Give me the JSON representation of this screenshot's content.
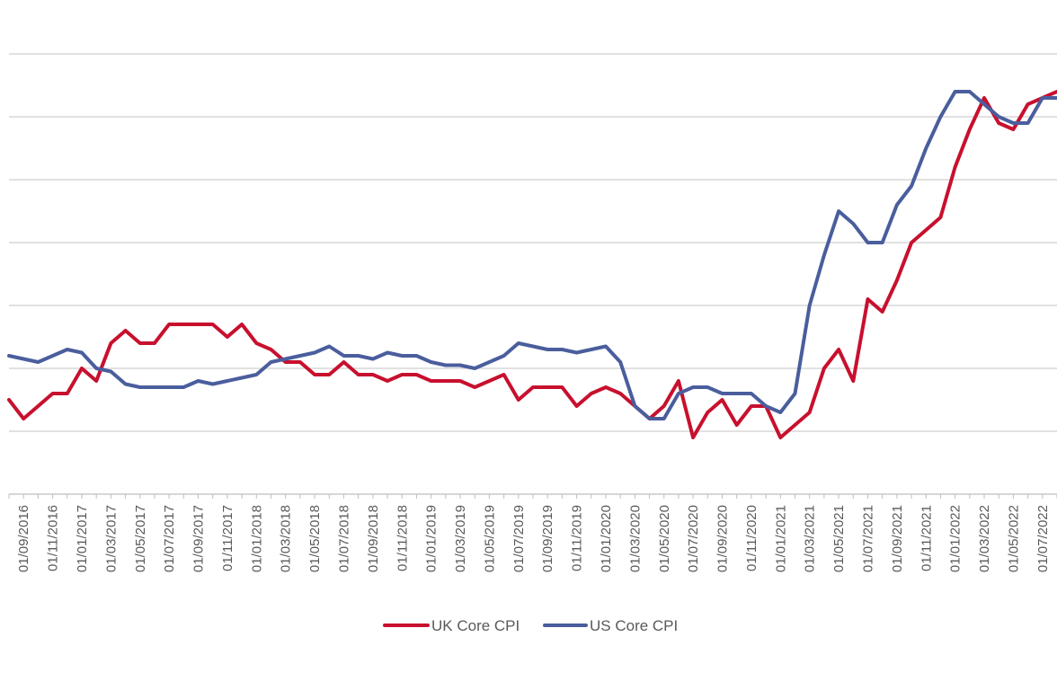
{
  "chart_data": {
    "type": "line",
    "title": "",
    "xlabel": "",
    "ylabel": "",
    "x_tick_labels": [
      "01/09/2016",
      "01/11/2016",
      "01/01/2017",
      "01/03/2017",
      "01/05/2017",
      "01/07/2017",
      "01/09/2017",
      "01/11/2017",
      "01/01/2018",
      "01/03/2018",
      "01/05/2018",
      "01/07/2018",
      "01/09/2018",
      "01/11/2018",
      "01/01/2019",
      "01/03/2019",
      "01/05/2019",
      "01/07/2019",
      "01/09/2019",
      "01/11/2019",
      "01/01/2020",
      "01/03/2020",
      "01/05/2020",
      "01/07/2020",
      "01/09/2020",
      "01/11/2020",
      "01/01/2021",
      "01/03/2021",
      "01/05/2021",
      "01/07/2021",
      "01/09/2021",
      "01/11/2021",
      "01/01/2022",
      "01/03/2022",
      "01/05/2022",
      "01/07/2022"
    ],
    "x": [
      "2016-08",
      "2016-09",
      "2016-10",
      "2016-11",
      "2016-12",
      "2017-01",
      "2017-02",
      "2017-03",
      "2017-04",
      "2017-05",
      "2017-06",
      "2017-07",
      "2017-08",
      "2017-09",
      "2017-10",
      "2017-11",
      "2017-12",
      "2018-01",
      "2018-02",
      "2018-03",
      "2018-04",
      "2018-05",
      "2018-06",
      "2018-07",
      "2018-08",
      "2018-09",
      "2018-10",
      "2018-11",
      "2018-12",
      "2019-01",
      "2019-02",
      "2019-03",
      "2019-04",
      "2019-05",
      "2019-06",
      "2019-07",
      "2019-08",
      "2019-09",
      "2019-10",
      "2019-11",
      "2019-12",
      "2020-01",
      "2020-02",
      "2020-03",
      "2020-04",
      "2020-05",
      "2020-06",
      "2020-07",
      "2020-08",
      "2020-09",
      "2020-10",
      "2020-11",
      "2020-12",
      "2021-01",
      "2021-02",
      "2021-03",
      "2021-04",
      "2021-05",
      "2021-06",
      "2021-07",
      "2021-08",
      "2021-09",
      "2021-10",
      "2021-11",
      "2021-12",
      "2022-01",
      "2022-02",
      "2022-03",
      "2022-04",
      "2022-05",
      "2022-06",
      "2022-07",
      "2022-08"
    ],
    "ylim": [
      0,
      7
    ],
    "y_gridlines": [
      0,
      1,
      2,
      3,
      4,
      5,
      6,
      7
    ],
    "y_tick_labels_visible": false,
    "grid": true,
    "legend_position": "bottom",
    "series": [
      {
        "name": "UK Core CPI",
        "color": "#c8102e",
        "values": [
          1.5,
          1.2,
          1.4,
          1.6,
          1.6,
          2.0,
          1.8,
          2.4,
          2.6,
          2.4,
          2.4,
          2.7,
          2.7,
          2.7,
          2.7,
          2.5,
          2.7,
          2.4,
          2.3,
          2.1,
          2.1,
          1.9,
          1.9,
          2.1,
          1.9,
          1.9,
          1.8,
          1.9,
          1.9,
          1.8,
          1.8,
          1.8,
          1.7,
          1.8,
          1.9,
          1.5,
          1.7,
          1.7,
          1.7,
          1.4,
          1.6,
          1.7,
          1.6,
          1.4,
          1.2,
          1.4,
          1.8,
          0.9,
          1.3,
          1.5,
          1.1,
          1.4,
          1.4,
          0.9,
          1.1,
          1.3,
          2.0,
          2.3,
          1.8,
          3.1,
          2.9,
          3.4,
          4.0,
          4.2,
          4.4,
          5.2,
          5.8,
          6.3,
          5.9,
          5.8,
          6.2,
          6.3,
          6.4
        ]
      },
      {
        "name": "US Core CPI",
        "color": "#4a5e9d",
        "values": [
          2.2,
          2.15,
          2.1,
          2.2,
          2.3,
          2.25,
          2.0,
          1.95,
          1.75,
          1.7,
          1.7,
          1.7,
          1.7,
          1.8,
          1.75,
          1.8,
          1.85,
          1.9,
          2.1,
          2.15,
          2.2,
          2.25,
          2.35,
          2.2,
          2.2,
          2.15,
          2.25,
          2.2,
          2.2,
          2.1,
          2.05,
          2.05,
          2.0,
          2.1,
          2.2,
          2.4,
          2.35,
          2.3,
          2.3,
          2.25,
          2.3,
          2.35,
          2.1,
          1.4,
          1.2,
          1.2,
          1.6,
          1.7,
          1.7,
          1.6,
          1.6,
          1.6,
          1.4,
          1.3,
          1.6,
          3.0,
          3.8,
          4.5,
          4.3,
          4.0,
          4.0,
          4.6,
          4.9,
          5.5,
          6.0,
          6.4,
          6.4,
          6.2,
          6.0,
          5.9,
          5.9,
          6.3,
          6.3
        ]
      }
    ]
  }
}
